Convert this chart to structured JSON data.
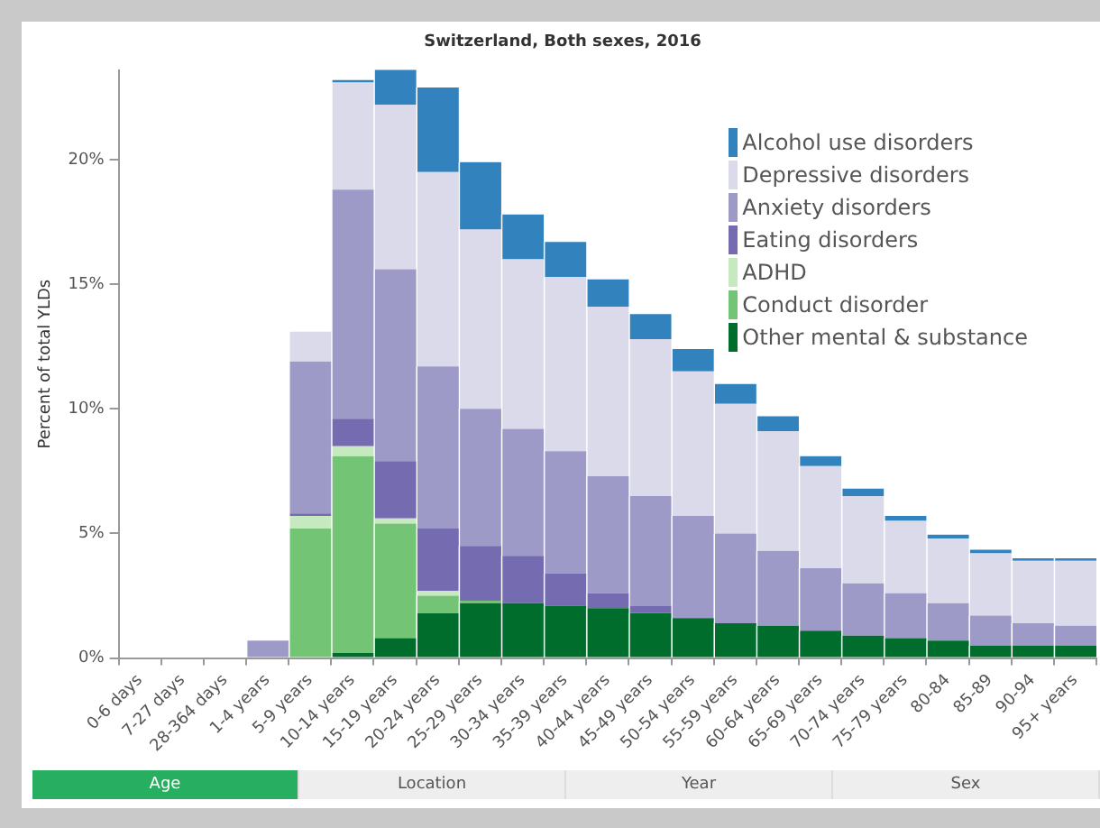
{
  "chart_data": {
    "type": "bar",
    "stacked": true,
    "title": "Switzerland, Both sexes, 2016",
    "ylabel": "Percent of total YLDs",
    "categories": [
      "0-6 days",
      "7-27 days",
      "28-364 days",
      "1-4 years",
      "5-9 years",
      "10-14 years",
      "15-19 years",
      "20-24 years",
      "25-29 years",
      "30-34 years",
      "35-39 years",
      "40-44 years",
      "45-49 years",
      "50-54 years",
      "55-59 years",
      "60-64 years",
      "65-69 years",
      "70-74 years",
      "75-79 years",
      "80-84",
      "85-89",
      "90-94",
      "95+ years"
    ],
    "series": [
      {
        "name": "Other mental & substance",
        "color": "#006d2c",
        "values": [
          0,
          0,
          0,
          0,
          0,
          0.2,
          0.8,
          1.8,
          2.2,
          2.2,
          2.1,
          2.0,
          1.8,
          1.6,
          1.4,
          1.3,
          1.1,
          0.9,
          0.8,
          0.7,
          0.5,
          0.5,
          0.5
        ]
      },
      {
        "name": "Conduct disorder",
        "color": "#74c476",
        "values": [
          0,
          0,
          0,
          0,
          5.2,
          7.9,
          4.6,
          0.7,
          0.1,
          0,
          0,
          0,
          0,
          0,
          0,
          0,
          0,
          0,
          0,
          0,
          0,
          0,
          0
        ]
      },
      {
        "name": "ADHD",
        "color": "#c7e9c0",
        "values": [
          0,
          0,
          0,
          0,
          0.5,
          0.4,
          0.2,
          0.2,
          0,
          0,
          0,
          0,
          0,
          0,
          0,
          0,
          0,
          0,
          0,
          0,
          0,
          0,
          0
        ]
      },
      {
        "name": "Eating disorders",
        "color": "#756bb1",
        "values": [
          0,
          0,
          0,
          0,
          0.1,
          1.1,
          2.3,
          2.5,
          2.2,
          1.9,
          1.3,
          0.6,
          0.3,
          0,
          0,
          0,
          0,
          0,
          0,
          0,
          0,
          0,
          0
        ]
      },
      {
        "name": "Anxiety disorders",
        "color": "#9e9ac8",
        "values": [
          0,
          0,
          0,
          0.7,
          6.1,
          9.2,
          7.7,
          6.5,
          5.5,
          5.1,
          4.9,
          4.7,
          4.4,
          4.1,
          3.6,
          3.0,
          2.5,
          2.1,
          1.8,
          1.5,
          1.2,
          0.9,
          0.8
        ]
      },
      {
        "name": "Depressive disorders",
        "color": "#dadaeb",
        "values": [
          0,
          0,
          0,
          0,
          1.2,
          4.3,
          6.6,
          7.8,
          7.2,
          6.8,
          7.0,
          6.8,
          6.3,
          5.8,
          5.2,
          4.8,
          4.1,
          3.5,
          2.9,
          2.6,
          2.5,
          2.5,
          2.6
        ]
      },
      {
        "name": "Alcohol use disorders",
        "color": "#3182bd",
        "values": [
          0,
          0,
          0,
          0,
          0,
          0.1,
          1.4,
          3.4,
          2.7,
          1.8,
          1.4,
          1.1,
          1.0,
          0.9,
          0.8,
          0.6,
          0.4,
          0.3,
          0.2,
          0.15,
          0.15,
          0.1,
          0.1
        ]
      }
    ],
    "ylim": [
      0,
      23.6
    ],
    "yticks": [
      {
        "value": 0,
        "label": "0%"
      },
      {
        "value": 5,
        "label": "5%"
      },
      {
        "value": 10,
        "label": "10%"
      },
      {
        "value": 15,
        "label": "15%"
      },
      {
        "value": 20,
        "label": "20%"
      }
    ],
    "grid": false,
    "legend": "top right",
    "annotations": [
      "Age",
      "Location",
      "Year",
      "Sex"
    ]
  }
}
